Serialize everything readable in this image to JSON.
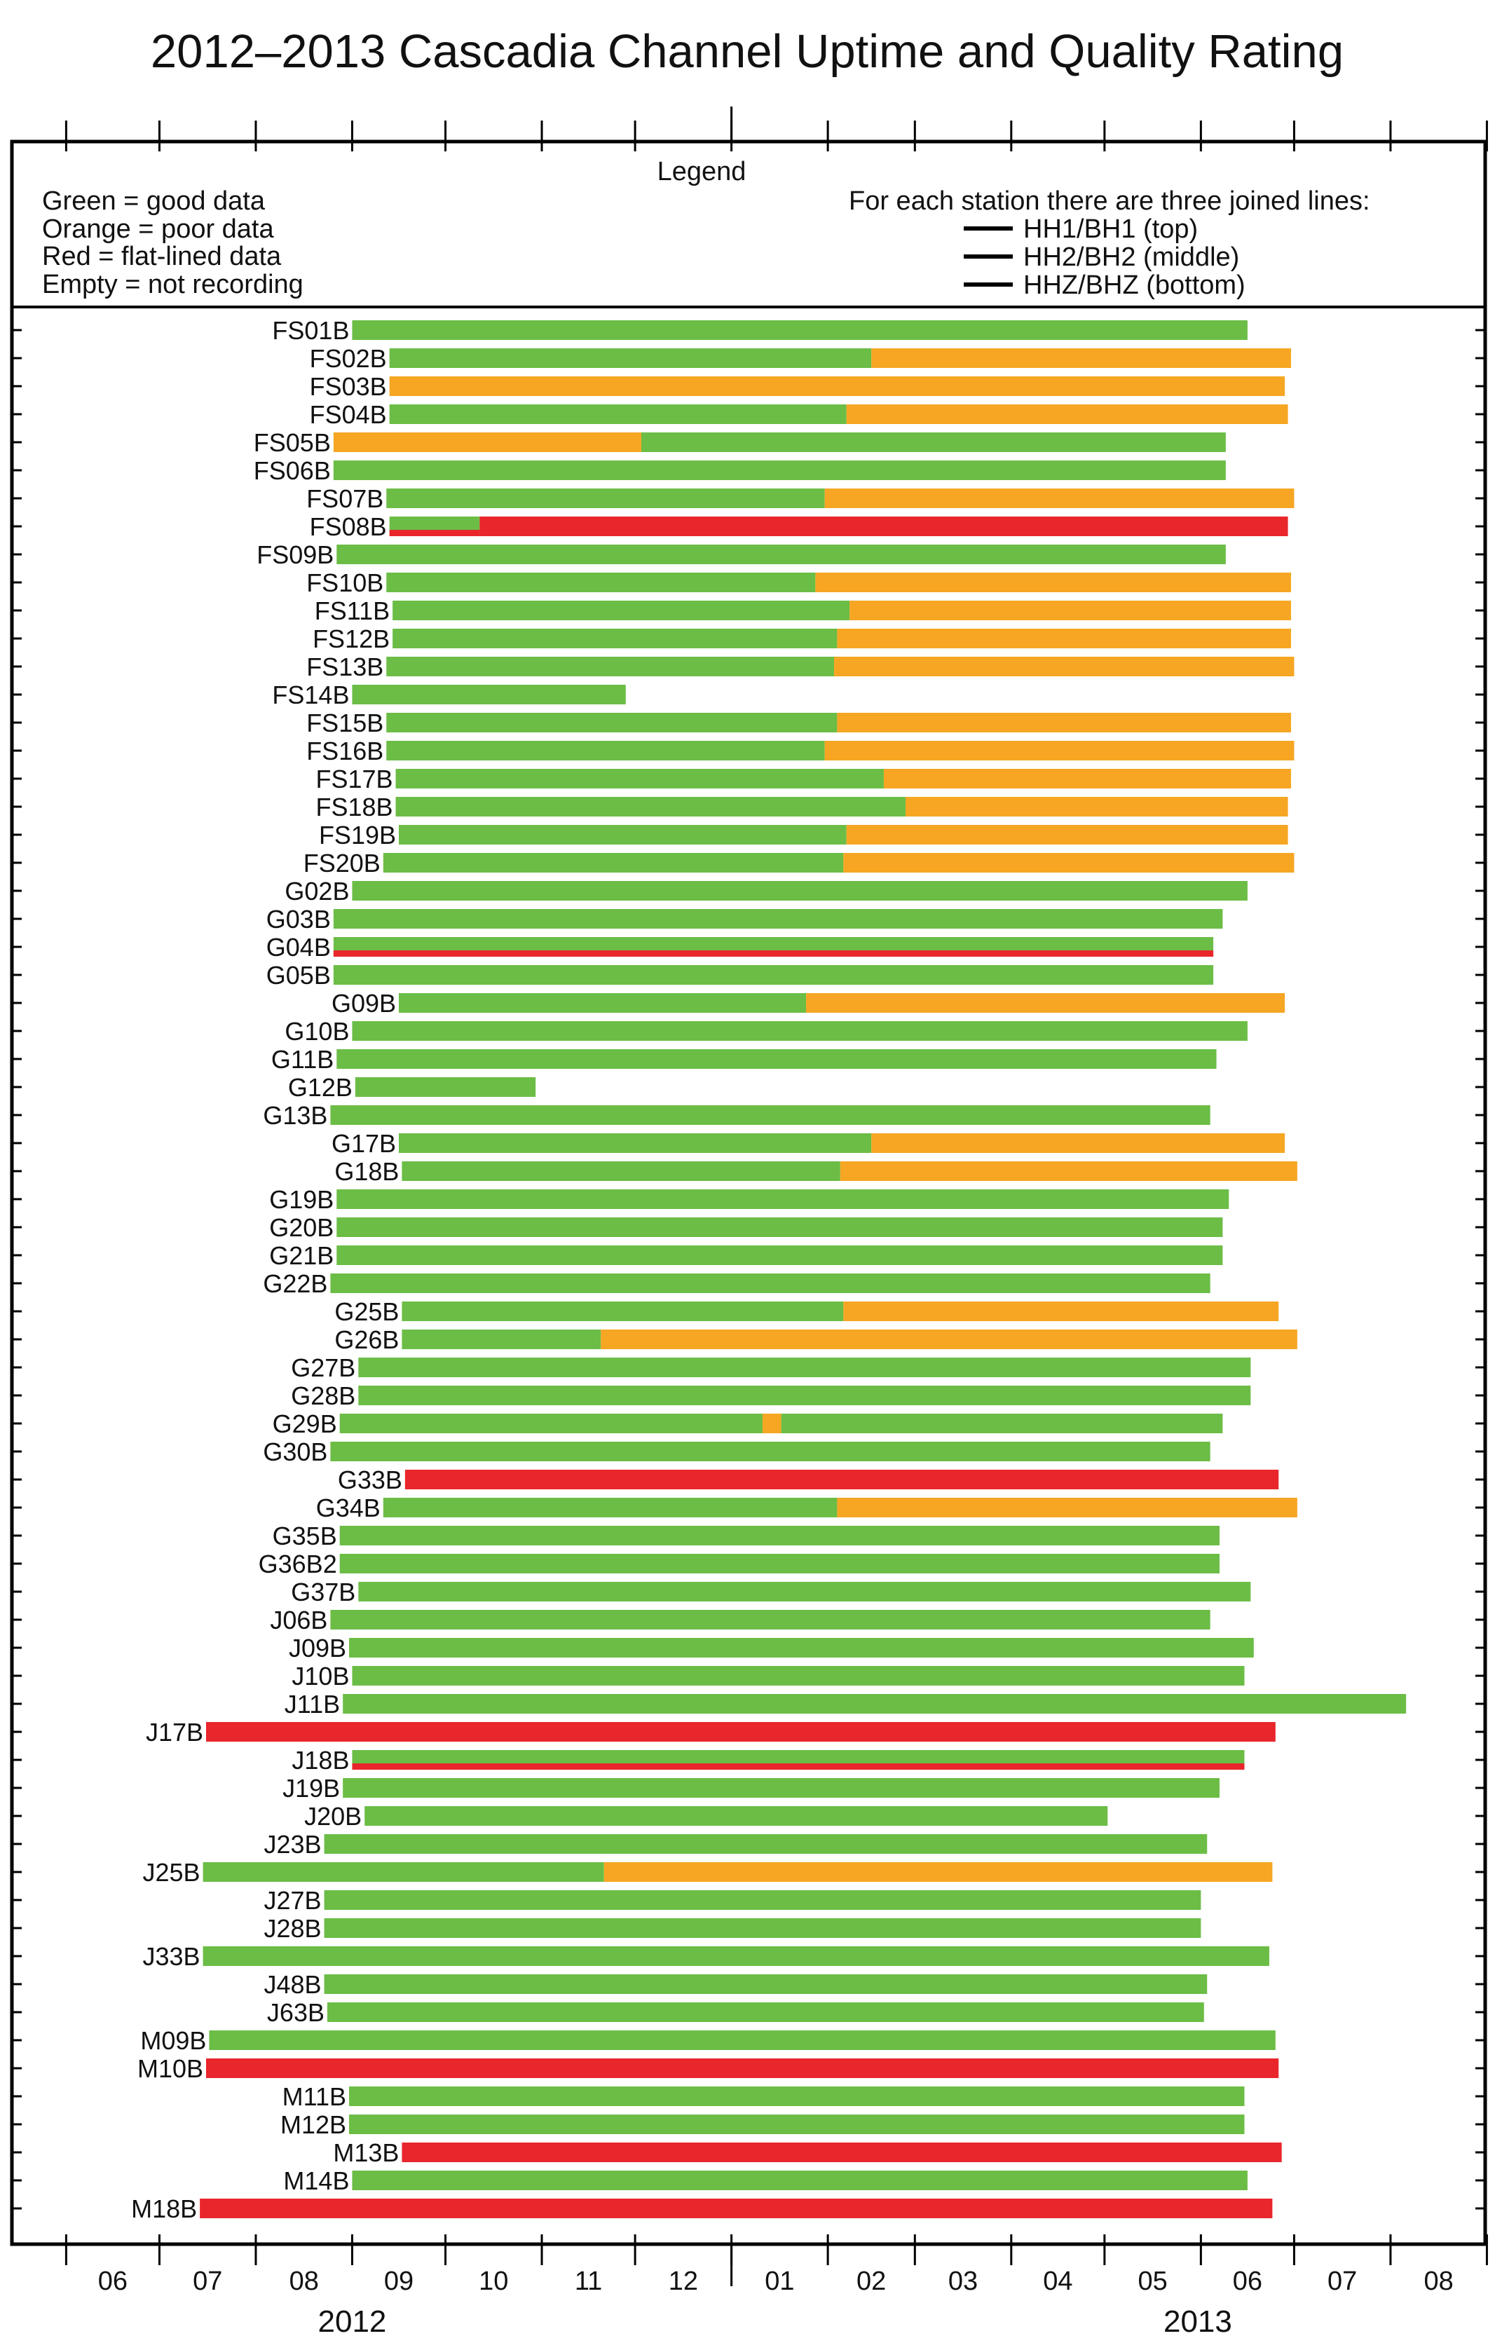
{
  "chart_data": {
    "type": "bar",
    "title": "2012–2013 Cascadia Channel Uptime and Quality Rating",
    "legend": {
      "title": "Legend",
      "items": [
        "Green = good data",
        "Orange = poor data",
        "Red = flat-lined data",
        "Empty = not recording"
      ],
      "note_title": "For each station there are three joined lines:",
      "channel_lines": [
        "HH1/BH1 (top)",
        "HH2/BH2 (middle)",
        "HHZ/BHZ (bottom)"
      ],
      "placement": "top"
    },
    "colors": {
      "good": "#6bbd45",
      "poor": "#f6a623",
      "flat": "#e8262b"
    },
    "x_axis": {
      "type": "month",
      "range": [
        "2012-05-15",
        "2013-08-31"
      ],
      "tick_labels": [
        "06",
        "07",
        "08",
        "09",
        "10",
        "11",
        "12",
        "01",
        "02",
        "03",
        "04",
        "05",
        "06",
        "07",
        "08"
      ],
      "year_labels": [
        "2012",
        "2013"
      ]
    },
    "stations": [
      {
        "name": "FS01B",
        "segments": [
          {
            "start": "2012-09-01",
            "end": "2013-06-16",
            "quality": "good"
          }
        ]
      },
      {
        "name": "FS02B",
        "segments": [
          {
            "start": "2012-09-13",
            "end": "2013-02-15",
            "quality": "good"
          },
          {
            "start": "2013-02-15",
            "end": "2013-06-30",
            "quality": "poor"
          }
        ]
      },
      {
        "name": "FS03B",
        "segments": [
          {
            "start": "2012-09-13",
            "end": "2013-06-28",
            "quality": "poor"
          }
        ]
      },
      {
        "name": "FS04B",
        "segments": [
          {
            "start": "2012-09-13",
            "end": "2013-02-07",
            "quality": "good"
          },
          {
            "start": "2013-02-07",
            "end": "2013-06-29",
            "quality": "poor"
          }
        ]
      },
      {
        "name": "FS05B",
        "segments": [
          {
            "start": "2012-08-26",
            "end": "2012-12-03",
            "quality": "poor"
          },
          {
            "start": "2012-12-03",
            "end": "2013-06-09",
            "quality": "good"
          }
        ]
      },
      {
        "name": "FS06B",
        "segments": [
          {
            "start": "2012-08-26",
            "end": "2013-06-09",
            "quality": "good"
          }
        ]
      },
      {
        "name": "FS07B",
        "segments": [
          {
            "start": "2012-09-12",
            "end": "2013-01-31",
            "quality": "good"
          },
          {
            "start": "2013-01-31",
            "end": "2013-07-01",
            "quality": "poor"
          }
        ]
      },
      {
        "name": "FS08B",
        "segments": [
          {
            "start": "2012-09-13",
            "end": "2012-10-12",
            "quality": "good"
          },
          {
            "start": "2012-10-12",
            "end": "2013-06-29",
            "quality": "flat"
          }
        ],
        "flat_line": {
          "start": "2012-09-13",
          "end": "2012-10-12"
        }
      },
      {
        "name": "FS09B",
        "segments": [
          {
            "start": "2012-08-27",
            "end": "2013-06-09",
            "quality": "good"
          }
        ]
      },
      {
        "name": "FS10B",
        "segments": [
          {
            "start": "2012-09-12",
            "end": "2013-01-28",
            "quality": "good"
          },
          {
            "start": "2013-01-28",
            "end": "2013-06-30",
            "quality": "poor"
          }
        ]
      },
      {
        "name": "FS11B",
        "segments": [
          {
            "start": "2012-09-14",
            "end": "2013-02-08",
            "quality": "good"
          },
          {
            "start": "2013-02-08",
            "end": "2013-06-30",
            "quality": "poor"
          }
        ]
      },
      {
        "name": "FS12B",
        "segments": [
          {
            "start": "2012-09-14",
            "end": "2013-02-04",
            "quality": "good"
          },
          {
            "start": "2013-02-04",
            "end": "2013-06-30",
            "quality": "poor"
          }
        ]
      },
      {
        "name": "FS13B",
        "segments": [
          {
            "start": "2012-09-12",
            "end": "2013-02-03",
            "quality": "good"
          },
          {
            "start": "2013-02-03",
            "end": "2013-07-01",
            "quality": "poor"
          }
        ]
      },
      {
        "name": "FS14B",
        "segments": [
          {
            "start": "2012-09-01",
            "end": "2012-11-28",
            "quality": "good"
          }
        ]
      },
      {
        "name": "FS15B",
        "segments": [
          {
            "start": "2012-09-12",
            "end": "2013-02-04",
            "quality": "good"
          },
          {
            "start": "2013-02-04",
            "end": "2013-06-30",
            "quality": "poor"
          }
        ]
      },
      {
        "name": "FS16B",
        "segments": [
          {
            "start": "2012-09-12",
            "end": "2013-01-31",
            "quality": "good"
          },
          {
            "start": "2013-01-31",
            "end": "2013-07-01",
            "quality": "poor"
          }
        ]
      },
      {
        "name": "FS17B",
        "segments": [
          {
            "start": "2012-09-15",
            "end": "2013-02-19",
            "quality": "good"
          },
          {
            "start": "2013-02-19",
            "end": "2013-06-30",
            "quality": "poor"
          }
        ]
      },
      {
        "name": "FS18B",
        "segments": [
          {
            "start": "2012-09-15",
            "end": "2013-02-26",
            "quality": "good"
          },
          {
            "start": "2013-02-26",
            "end": "2013-06-29",
            "quality": "poor"
          }
        ]
      },
      {
        "name": "FS19B",
        "segments": [
          {
            "start": "2012-09-16",
            "end": "2013-02-07",
            "quality": "good"
          },
          {
            "start": "2013-02-07",
            "end": "2013-06-29",
            "quality": "poor"
          }
        ]
      },
      {
        "name": "FS20B",
        "segments": [
          {
            "start": "2012-09-11",
            "end": "2013-02-06",
            "quality": "good"
          },
          {
            "start": "2013-02-06",
            "end": "2013-07-01",
            "quality": "poor"
          }
        ]
      },
      {
        "name": "G02B",
        "segments": [
          {
            "start": "2012-09-01",
            "end": "2013-06-16",
            "quality": "good"
          }
        ]
      },
      {
        "name": "G03B",
        "segments": [
          {
            "start": "2012-08-26",
            "end": "2013-06-08",
            "quality": "good"
          }
        ]
      },
      {
        "name": "G04B",
        "segments": [
          {
            "start": "2012-08-26",
            "end": "2013-06-05",
            "quality": "good"
          }
        ],
        "flat_line": {
          "start": "2012-08-26",
          "end": "2013-06-05"
        }
      },
      {
        "name": "G05B",
        "segments": [
          {
            "start": "2012-08-26",
            "end": "2013-06-05",
            "quality": "good"
          }
        ]
      },
      {
        "name": "G09B",
        "segments": [
          {
            "start": "2012-09-16",
            "end": "2013-01-25",
            "quality": "good"
          },
          {
            "start": "2013-01-25",
            "end": "2013-06-28",
            "quality": "poor"
          }
        ]
      },
      {
        "name": "G10B",
        "segments": [
          {
            "start": "2012-09-01",
            "end": "2013-06-16",
            "quality": "good"
          }
        ]
      },
      {
        "name": "G11B",
        "segments": [
          {
            "start": "2012-08-27",
            "end": "2013-06-06",
            "quality": "good"
          }
        ]
      },
      {
        "name": "G12B",
        "segments": [
          {
            "start": "2012-09-02",
            "end": "2012-10-30",
            "quality": "good"
          }
        ]
      },
      {
        "name": "G13B",
        "segments": [
          {
            "start": "2012-08-25",
            "end": "2013-06-04",
            "quality": "good"
          }
        ]
      },
      {
        "name": "G17B",
        "segments": [
          {
            "start": "2012-09-16",
            "end": "2013-02-15",
            "quality": "good"
          },
          {
            "start": "2013-02-15",
            "end": "2013-06-28",
            "quality": "poor"
          }
        ]
      },
      {
        "name": "G18B",
        "segments": [
          {
            "start": "2012-09-17",
            "end": "2013-02-05",
            "quality": "good"
          },
          {
            "start": "2013-02-05",
            "end": "2013-07-02",
            "quality": "poor"
          }
        ]
      },
      {
        "name": "G19B",
        "segments": [
          {
            "start": "2012-08-27",
            "end": "2013-06-10",
            "quality": "good"
          }
        ]
      },
      {
        "name": "G20B",
        "segments": [
          {
            "start": "2012-08-27",
            "end": "2013-06-08",
            "quality": "good"
          }
        ]
      },
      {
        "name": "G21B",
        "segments": [
          {
            "start": "2012-08-27",
            "end": "2013-06-08",
            "quality": "good"
          }
        ]
      },
      {
        "name": "G22B",
        "segments": [
          {
            "start": "2012-08-25",
            "end": "2013-06-04",
            "quality": "good"
          }
        ]
      },
      {
        "name": "G25B",
        "segments": [
          {
            "start": "2012-09-17",
            "end": "2013-02-06",
            "quality": "good"
          },
          {
            "start": "2013-02-06",
            "end": "2013-06-26",
            "quality": "poor"
          }
        ]
      },
      {
        "name": "G26B",
        "segments": [
          {
            "start": "2012-09-17",
            "end": "2012-11-20",
            "quality": "good"
          },
          {
            "start": "2012-11-20",
            "end": "2013-07-02",
            "quality": "poor"
          }
        ]
      },
      {
        "name": "G27B",
        "segments": [
          {
            "start": "2012-09-03",
            "end": "2013-06-17",
            "quality": "good"
          }
        ]
      },
      {
        "name": "G28B",
        "segments": [
          {
            "start": "2012-09-03",
            "end": "2013-06-17",
            "quality": "good"
          }
        ]
      },
      {
        "name": "G29B",
        "segments": [
          {
            "start": "2012-08-28",
            "end": "2013-01-11",
            "quality": "good"
          },
          {
            "start": "2013-01-11",
            "end": "2013-01-17",
            "quality": "poor"
          },
          {
            "start": "2013-01-17",
            "end": "2013-06-08",
            "quality": "good"
          }
        ]
      },
      {
        "name": "G30B",
        "segments": [
          {
            "start": "2012-08-25",
            "end": "2013-06-04",
            "quality": "good"
          }
        ]
      },
      {
        "name": "G33B",
        "segments": [
          {
            "start": "2012-09-18",
            "end": "2013-06-26",
            "quality": "flat"
          }
        ]
      },
      {
        "name": "G34B",
        "segments": [
          {
            "start": "2012-09-11",
            "end": "2013-02-04",
            "quality": "good"
          },
          {
            "start": "2013-02-04",
            "end": "2013-07-02",
            "quality": "poor"
          }
        ]
      },
      {
        "name": "G35B",
        "segments": [
          {
            "start": "2012-08-28",
            "end": "2013-06-07",
            "quality": "good"
          }
        ]
      },
      {
        "name": "G36B2",
        "segments": [
          {
            "start": "2012-08-28",
            "end": "2013-06-07",
            "quality": "good"
          }
        ]
      },
      {
        "name": "G37B",
        "segments": [
          {
            "start": "2012-09-03",
            "end": "2013-06-17",
            "quality": "good"
          }
        ]
      },
      {
        "name": "J06B",
        "segments": [
          {
            "start": "2012-08-25",
            "end": "2013-06-04",
            "quality": "good"
          }
        ]
      },
      {
        "name": "J09B",
        "segments": [
          {
            "start": "2012-08-31",
            "end": "2013-06-18",
            "quality": "good"
          }
        ]
      },
      {
        "name": "J10B",
        "segments": [
          {
            "start": "2012-09-01",
            "end": "2013-06-15",
            "quality": "good"
          }
        ]
      },
      {
        "name": "J11B",
        "segments": [
          {
            "start": "2012-08-29",
            "end": "2013-08-06",
            "quality": "good"
          }
        ]
      },
      {
        "name": "J17B",
        "segments": [
          {
            "start": "2012-07-16",
            "end": "2013-06-25",
            "quality": "flat"
          }
        ]
      },
      {
        "name": "J18B",
        "segments": [
          {
            "start": "2012-09-01",
            "end": "2013-06-15",
            "quality": "good"
          }
        ],
        "flat_line": {
          "start": "2012-09-01",
          "end": "2013-06-15"
        }
      },
      {
        "name": "J19B",
        "segments": [
          {
            "start": "2012-08-29",
            "end": "2013-06-07",
            "quality": "good"
          }
        ]
      },
      {
        "name": "J20B",
        "segments": [
          {
            "start": "2012-09-05",
            "end": "2013-05-02",
            "quality": "good"
          }
        ]
      },
      {
        "name": "J23B",
        "segments": [
          {
            "start": "2012-08-23",
            "end": "2013-06-03",
            "quality": "good"
          }
        ]
      },
      {
        "name": "J25B",
        "segments": [
          {
            "start": "2012-07-15",
            "end": "2012-11-21",
            "quality": "good"
          },
          {
            "start": "2012-11-21",
            "end": "2013-06-24",
            "quality": "poor"
          }
        ]
      },
      {
        "name": "J27B",
        "segments": [
          {
            "start": "2012-08-23",
            "end": "2013-06-01",
            "quality": "good"
          }
        ]
      },
      {
        "name": "J28B",
        "segments": [
          {
            "start": "2012-08-23",
            "end": "2013-06-01",
            "quality": "good"
          }
        ]
      },
      {
        "name": "J33B",
        "segments": [
          {
            "start": "2012-07-15",
            "end": "2013-06-23",
            "quality": "good"
          }
        ]
      },
      {
        "name": "J48B",
        "segments": [
          {
            "start": "2012-08-23",
            "end": "2013-06-03",
            "quality": "good"
          }
        ]
      },
      {
        "name": "J63B",
        "segments": [
          {
            "start": "2012-08-24",
            "end": "2013-06-02",
            "quality": "good"
          }
        ]
      },
      {
        "name": "M09B",
        "segments": [
          {
            "start": "2012-07-17",
            "end": "2013-06-25",
            "quality": "good"
          }
        ]
      },
      {
        "name": "M10B",
        "segments": [
          {
            "start": "2012-07-16",
            "end": "2013-06-26",
            "quality": "flat"
          }
        ]
      },
      {
        "name": "M11B",
        "segments": [
          {
            "start": "2012-08-31",
            "end": "2013-06-15",
            "quality": "good"
          }
        ]
      },
      {
        "name": "M12B",
        "segments": [
          {
            "start": "2012-08-31",
            "end": "2013-06-15",
            "quality": "good"
          }
        ]
      },
      {
        "name": "M13B",
        "segments": [
          {
            "start": "2012-09-17",
            "end": "2013-06-27",
            "quality": "flat"
          }
        ]
      },
      {
        "name": "M14B",
        "segments": [
          {
            "start": "2012-09-01",
            "end": "2013-06-16",
            "quality": "good"
          }
        ]
      },
      {
        "name": "M18B",
        "segments": [
          {
            "start": "2012-07-14",
            "end": "2013-06-24",
            "quality": "flat"
          }
        ]
      }
    ]
  }
}
